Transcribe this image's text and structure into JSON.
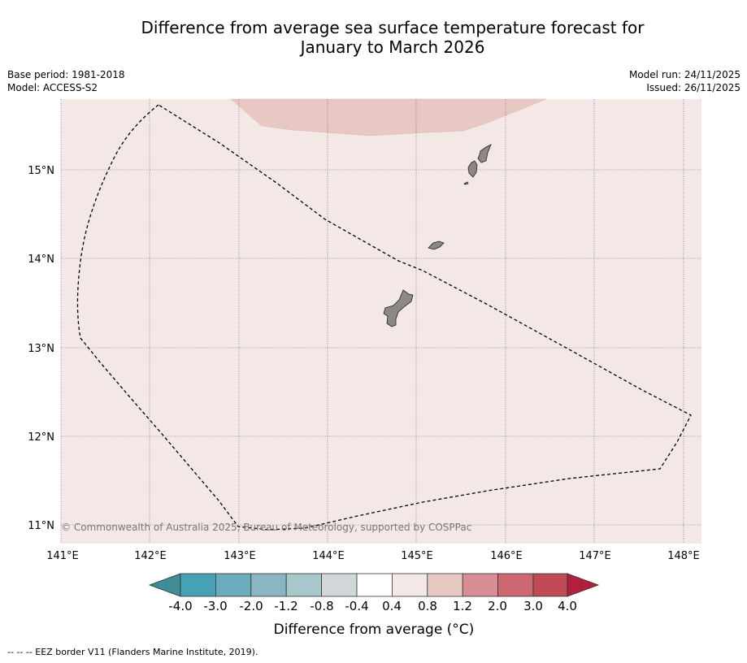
{
  "header": {
    "title_line1": "Difference from average sea surface temperature forecast for",
    "title_line2": "January to March 2026",
    "base_period": "Base period: 1981-2018",
    "model": "Model: ACCESS-S2",
    "model_run": "Model run: 24/11/2025",
    "issued": "Issued: 26/11/2025"
  },
  "map": {
    "lon_ticks": [
      "141°E",
      "142°E",
      "143°E",
      "144°E",
      "145°E",
      "146°E",
      "147°E",
      "148°E"
    ],
    "lat_ticks": [
      "15°N",
      "14°N",
      "13°N",
      "12°N",
      "11°N"
    ],
    "lon_range": [
      141.0,
      148.2
    ],
    "lat_range": [
      10.8,
      15.8
    ],
    "background_color": "#f4e8e7",
    "anomaly_patch_color": "#e8c8c3",
    "land_color": "#8c8886",
    "copyright": "© Commonwealth of Australia 2025, Bureau of Meteorology, supported by COSPPac"
  },
  "colorbar": {
    "ticks": [
      "-4.0",
      "-3.0",
      "-2.0",
      "-1.2",
      "-0.8",
      "-0.4",
      "0.4",
      "0.8",
      "1.2",
      "2.0",
      "3.0",
      "4.0"
    ],
    "colors": [
      "#418b96",
      "#47a3b3",
      "#6aacbb",
      "#89b6c2",
      "#a8c7cb",
      "#d0d7d9",
      "#ffffff",
      "#f4e8e7",
      "#e8c8c3",
      "#d78e95",
      "#cd6872",
      "#c14a59",
      "#b21f3d"
    ],
    "label": "Difference from average (°C)"
  },
  "legend": {
    "eez_note": "--  --  -- EEZ border V11 (Flanders Marine Institute, 2019)."
  }
}
